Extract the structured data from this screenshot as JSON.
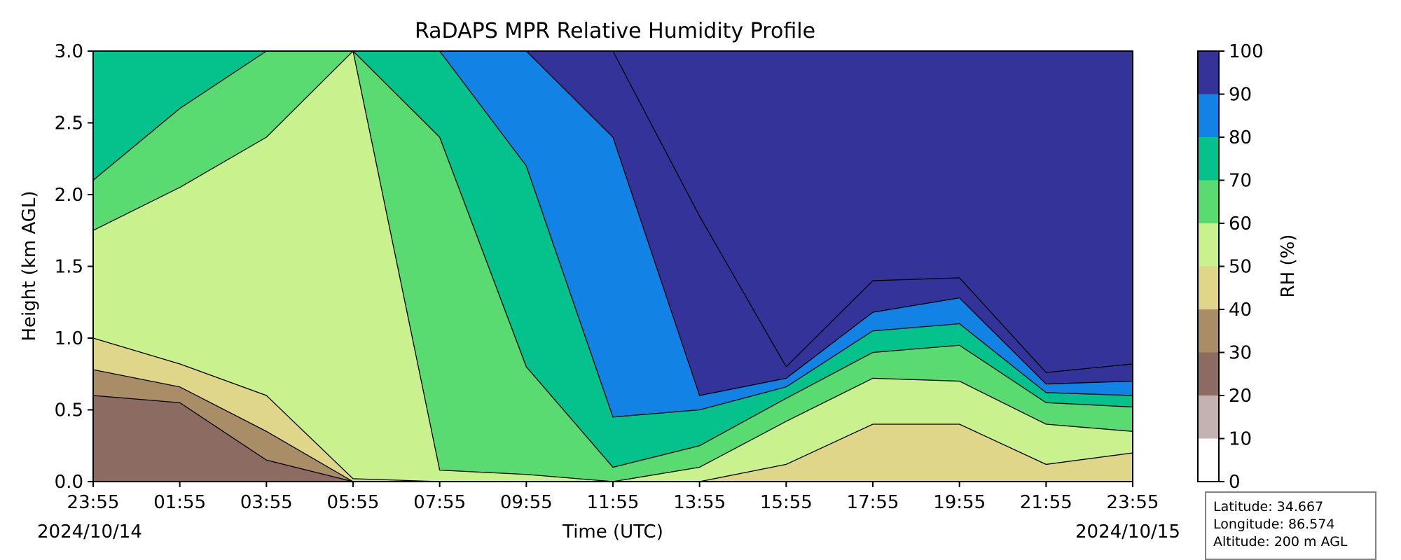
{
  "chart_data": {
    "type": "heatmap",
    "title": "RaDAPS MPR Relative Humidity Profile",
    "xlabel": "Time (UTC)",
    "ylabel": "Height (km AGL)",
    "colorbar_label": "RH (%)",
    "x_ticks": [
      "23:55",
      "01:55",
      "03:55",
      "05:55",
      "07:55",
      "09:55",
      "11:55",
      "13:55",
      "15:55",
      "17:55",
      "19:55",
      "21:55",
      "23:55"
    ],
    "start_date": "2024/10/14",
    "end_date": "2024/10/15",
    "y_ticks": [
      "0.0",
      "0.5",
      "1.0",
      "1.5",
      "2.0",
      "2.5",
      "3.0"
    ],
    "ylim": [
      0.0,
      3.0
    ],
    "levels": [
      0,
      10,
      20,
      30,
      40,
      50,
      60,
      70,
      80,
      90,
      100
    ],
    "level_colors": [
      "#ffffff",
      "#c4b2b0",
      "#8c6b62",
      "#a88d67",
      "#e0d689",
      "#c9f28e",
      "#59db72",
      "#05c18b",
      "#1282e4",
      "#343399"
    ],
    "band_boundaries_km": [
      {
        "time_h": 0,
        "b20": 0.6,
        "b30": 0.78,
        "b40": 1.0,
        "b50": 1.75,
        "b60": 2.1,
        "b70": 3.0,
        "b80": 3.0,
        "b90": 3.0
      },
      {
        "time_h": 2,
        "b20": 0.55,
        "b30": 0.66,
        "b40": 0.82,
        "b50": 2.05,
        "b60": 2.6,
        "b70": 3.0,
        "b80": 3.0,
        "b90": 3.0
      },
      {
        "time_h": 4,
        "b20": 0.15,
        "b30": 0.35,
        "b40": 0.6,
        "b50": 2.4,
        "b60": 3.0,
        "b70": 3.0,
        "b80": 3.0,
        "b90": 3.0
      },
      {
        "time_h": 6,
        "b20": 0.0,
        "b30": 0.0,
        "b40": 0.02,
        "b50": 3.0,
        "b60": 3.0,
        "b70": 3.0,
        "b80": 3.0,
        "b90": 3.0
      },
      {
        "time_h": 8,
        "b20": 0.0,
        "b30": 0.0,
        "b40": 0.0,
        "b50": 0.08,
        "b60": 2.4,
        "b70": 3.0,
        "b80": 3.0,
        "b90": 3.0
      },
      {
        "time_h": 10,
        "b20": 0.0,
        "b30": 0.0,
        "b40": 0.0,
        "b50": 0.05,
        "b60": 0.8,
        "b70": 2.2,
        "b80": 3.0,
        "b90": 3.0
      },
      {
        "time_h": 12,
        "b20": 0.0,
        "b30": 0.0,
        "b40": 0.0,
        "b50": 0.0,
        "b60": 0.1,
        "b70": 0.45,
        "b80": 2.4,
        "b90": 3.0
      },
      {
        "time_h": 14,
        "b20": 0.0,
        "b30": 0.0,
        "b40": 0.0,
        "b50": 0.1,
        "b60": 0.25,
        "b70": 0.5,
        "b80": 0.6,
        "b90": 1.85
      },
      {
        "time_h": 16,
        "b20": 0.0,
        "b30": 0.0,
        "b40": 0.12,
        "b50": 0.42,
        "b60": 0.58,
        "b70": 0.66,
        "b80": 0.72,
        "b90": 0.8
      },
      {
        "time_h": 18,
        "b20": 0.0,
        "b30": 0.0,
        "b40": 0.4,
        "b50": 0.72,
        "b60": 0.9,
        "b70": 1.05,
        "b80": 1.18,
        "b90": 1.4
      },
      {
        "time_h": 20,
        "b20": 0.0,
        "b30": 0.0,
        "b40": 0.4,
        "b50": 0.7,
        "b60": 0.95,
        "b70": 1.1,
        "b80": 1.28,
        "b90": 1.42
      },
      {
        "time_h": 22,
        "b20": 0.0,
        "b30": 0.0,
        "b40": 0.12,
        "b50": 0.4,
        "b60": 0.55,
        "b70": 0.62,
        "b80": 0.68,
        "b90": 0.76
      },
      {
        "time_h": 24,
        "b20": 0.0,
        "b30": 0.0,
        "b40": 0.2,
        "b50": 0.35,
        "b60": 0.52,
        "b70": 0.6,
        "b80": 0.7,
        "b90": 0.82
      }
    ]
  },
  "info": {
    "latitude": "Latitude: 34.667",
    "longitude": "Longitude: 86.574",
    "altitude": "Altitude: 200 m AGL"
  }
}
